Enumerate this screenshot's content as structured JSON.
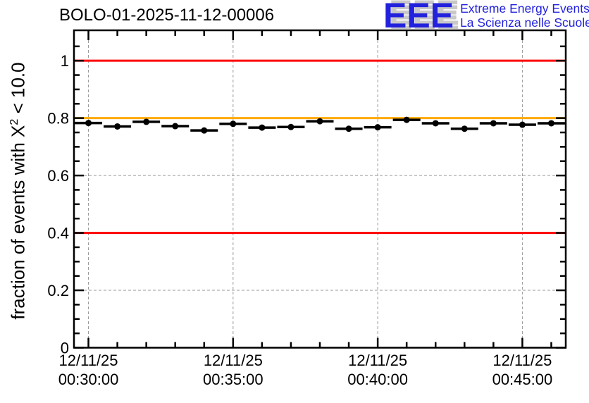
{
  "logo": {
    "acronym": "EEE",
    "line1": "Extreme Energy Events",
    "line2": "La Scienza nelle Scuole",
    "color": "#2222dd",
    "shadow_color": "#c8c8c8"
  },
  "chart_data": {
    "type": "scatter",
    "title": "BOLO-01-2025-11-12-00006",
    "ylabel": "fraction of events with X² < 10.0",
    "ylabel_parts": {
      "prefix": "fraction of events with X",
      "sup": "2",
      "suffix": " < 10.0"
    },
    "xlabel": "",
    "ylim": [
      0,
      1.106
    ],
    "y_major_ticks": [
      0,
      0.2,
      0.4,
      0.6,
      0.8,
      1.0
    ],
    "y_tick_labels": [
      "0",
      "0.2",
      "0.4",
      "0.6",
      "0.8",
      "1"
    ],
    "y_minor_step": 0.05,
    "grid": true,
    "grid_color": "#9a9a9a",
    "x_axis": {
      "unit": "time",
      "date": "12/11/25",
      "lim_minutes": [
        29.5,
        46.5
      ],
      "major_ticks_minutes": [
        30,
        35,
        40,
        45
      ],
      "minor_step_minutes": 1,
      "tick_labels": [
        [
          "12/11/25",
          "00:30:00"
        ],
        [
          "12/11/25",
          "00:35:00"
        ],
        [
          "12/11/25",
          "00:40:00"
        ],
        [
          "12/11/25",
          "00:45:00"
        ]
      ]
    },
    "reference_lines": [
      {
        "y": 1.0,
        "color": "#ff0000"
      },
      {
        "y": 0.8,
        "color": "#ffaa00"
      },
      {
        "y": 0.4,
        "color": "#ff0000"
      }
    ],
    "series": [
      {
        "name": "fraction of events with chi2 < 10.0",
        "marker": "filled-circle",
        "color": "#000000",
        "x_bin_halfwidth_minutes": 0.5,
        "points": [
          {
            "time": "00:30:00",
            "minutes": 30,
            "value": 0.783
          },
          {
            "time": "00:31:00",
            "minutes": 31,
            "value": 0.771
          },
          {
            "time": "00:32:00",
            "minutes": 32,
            "value": 0.787
          },
          {
            "time": "00:33:00",
            "minutes": 33,
            "value": 0.772
          },
          {
            "time": "00:34:00",
            "minutes": 34,
            "value": 0.757
          },
          {
            "time": "00:35:00",
            "minutes": 35,
            "value": 0.78
          },
          {
            "time": "00:36:00",
            "minutes": 36,
            "value": 0.767
          },
          {
            "time": "00:37:00",
            "minutes": 37,
            "value": 0.769
          },
          {
            "time": "00:38:00",
            "minutes": 38,
            "value": 0.789
          },
          {
            "time": "00:39:00",
            "minutes": 39,
            "value": 0.763
          },
          {
            "time": "00:40:00",
            "minutes": 40,
            "value": 0.768
          },
          {
            "time": "00:41:00",
            "minutes": 41,
            "value": 0.794
          },
          {
            "time": "00:42:00",
            "minutes": 42,
            "value": 0.782
          },
          {
            "time": "00:43:00",
            "minutes": 43,
            "value": 0.763
          },
          {
            "time": "00:44:00",
            "minutes": 44,
            "value": 0.782
          },
          {
            "time": "00:45:00",
            "minutes": 45,
            "value": 0.777
          },
          {
            "time": "00:46:00",
            "minutes": 46,
            "value": 0.782
          }
        ]
      }
    ]
  }
}
